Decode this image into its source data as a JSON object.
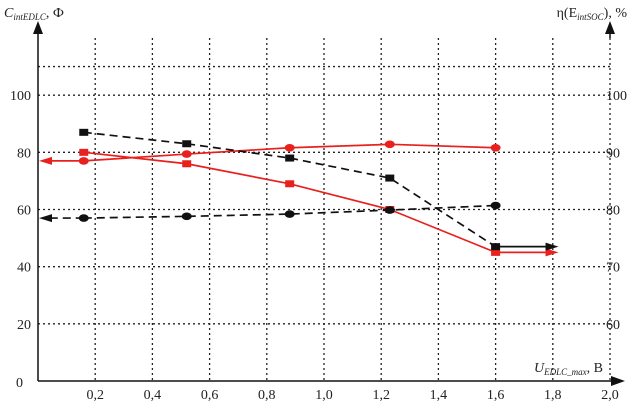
{
  "chart_data": {
    "type": "line",
    "left_axis": {
      "title_main": "C",
      "title_sub": "intEDLC",
      "title_unit": ", Ф",
      "range": [
        0,
        120
      ],
      "ticks": [
        0,
        20,
        40,
        60,
        80,
        100
      ]
    },
    "right_axis": {
      "title_main": "η(E",
      "title_sub": "intSOC",
      "title_unit": "), %",
      "range": [
        50,
        110
      ],
      "ticks": [
        60,
        70,
        80,
        90,
        100
      ]
    },
    "x_axis": {
      "title_main": "U",
      "title_sub": "EDLC_max",
      "title_unit": ", B",
      "range": [
        0,
        2.0
      ],
      "ticks": [
        "0,2",
        "0,4",
        "0,6",
        "0,8",
        "1,0",
        "1,2",
        "1,4",
        "1,6",
        "1,8",
        "2,0"
      ],
      "tick_values": [
        0.2,
        0.4,
        0.6,
        0.8,
        1.0,
        1.2,
        1.4,
        1.6,
        1.8,
        2.0
      ],
      "origin_label": "0"
    },
    "grid": true,
    "series": [
      {
        "axis": "left",
        "color": "#e8211f",
        "dash": false,
        "marker": "square",
        "x": [
          0.16,
          0.52,
          0.88,
          1.23,
          1.6
        ],
        "values": [
          80,
          76,
          69,
          60,
          45
        ],
        "arrow": "right"
      },
      {
        "axis": "right",
        "color": "#e8211f",
        "dash": false,
        "marker": "circle",
        "x": [
          0.16,
          0.52,
          0.88,
          1.23,
          1.6
        ],
        "values": [
          88.5,
          89.7,
          90.8,
          91.4,
          90.8
        ],
        "arrow": "left"
      },
      {
        "axis": "left",
        "color": "#111111",
        "dash": true,
        "marker": "square",
        "x": [
          0.16,
          0.52,
          0.88,
          1.23,
          1.6
        ],
        "values": [
          87,
          83,
          78,
          71,
          47
        ],
        "arrow": "right"
      },
      {
        "axis": "right",
        "color": "#111111",
        "dash": true,
        "marker": "circle",
        "x": [
          0.16,
          0.52,
          0.88,
          1.23,
          1.6
        ],
        "values": [
          78.5,
          78.8,
          79.2,
          79.9,
          80.7
        ],
        "arrow": "left"
      }
    ]
  }
}
